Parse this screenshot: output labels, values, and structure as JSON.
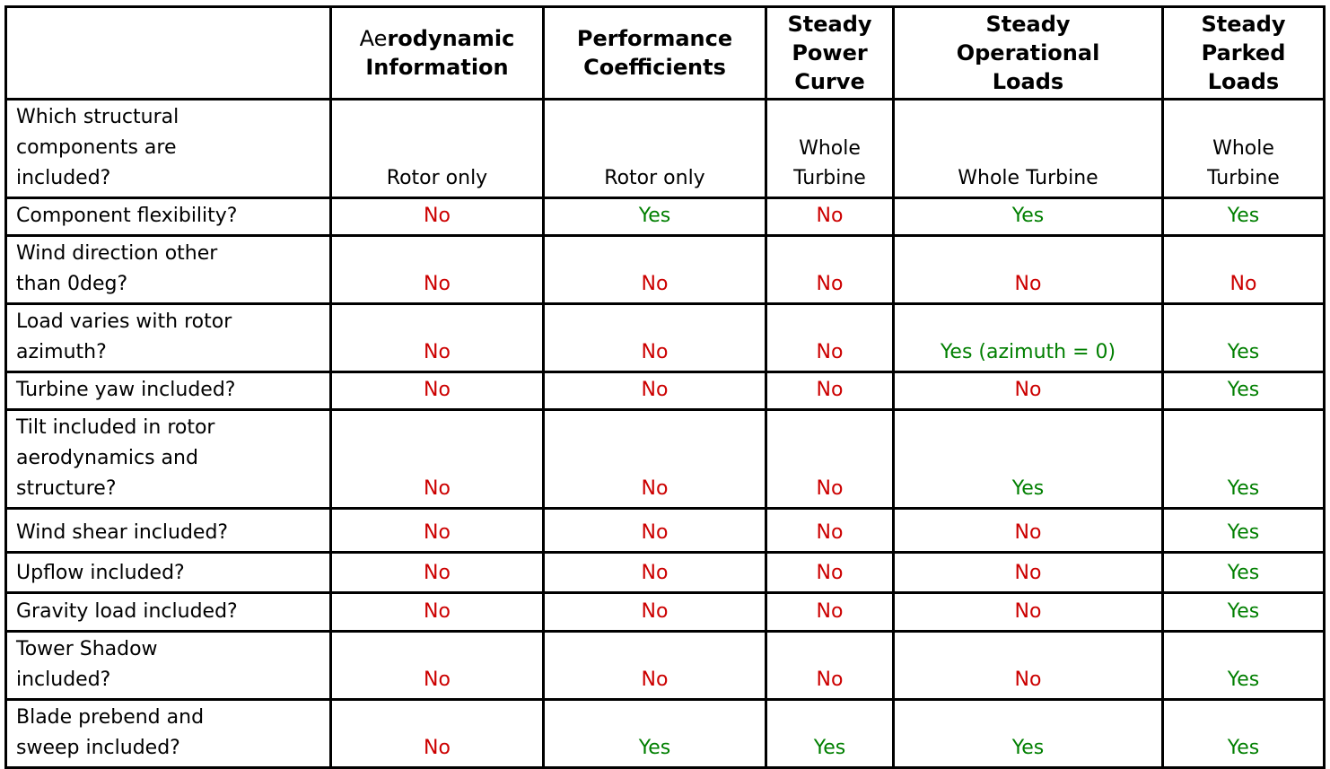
{
  "colors": {
    "yes_text": "#007f00",
    "no_text": "#cc0000",
    "neutral_text": "#000000",
    "border": "#000000",
    "background": "#ffffff"
  },
  "table": {
    "corner_label": "",
    "columns": [
      {
        "id": "aerodynamic-information",
        "label": "Aerodynamic Information",
        "lines": [
          {
            "parts": [
              {
                "t": "Ae",
                "b": false
              },
              {
                "t": "rodynamic",
                "b": true
              }
            ]
          },
          {
            "parts": [
              {
                "t": "Information",
                "b": true
              }
            ]
          }
        ]
      },
      {
        "id": "performance-coefficients",
        "label": "Performance Coefficients",
        "lines": [
          {
            "parts": [
              {
                "t": "Performance",
                "b": true
              }
            ]
          },
          {
            "parts": [
              {
                "t": "Coefficients",
                "b": true
              }
            ]
          }
        ]
      },
      {
        "id": "steady-power-curve",
        "label": "Steady Power Curve",
        "lines": [
          {
            "parts": [
              {
                "t": "Steady",
                "b": true
              }
            ]
          },
          {
            "parts": [
              {
                "t": "Power",
                "b": true
              }
            ]
          },
          {
            "parts": [
              {
                "t": "Curve",
                "b": true
              }
            ]
          }
        ]
      },
      {
        "id": "steady-operational-loads",
        "label": "Steady Operational Loads",
        "lines": [
          {
            "parts": [
              {
                "t": "Steady",
                "b": true
              }
            ]
          },
          {
            "parts": [
              {
                "t": "Operational",
                "b": true
              }
            ]
          },
          {
            "parts": [
              {
                "t": "Loads",
                "b": true
              }
            ]
          }
        ]
      },
      {
        "id": "steady-parked-loads",
        "label": "Steady Parked Loads",
        "lines": [
          {
            "parts": [
              {
                "t": "Steady",
                "b": true
              }
            ]
          },
          {
            "parts": [
              {
                "t": "Parked",
                "b": true
              }
            ]
          },
          {
            "parts": [
              {
                "t": "Loads",
                "b": true
              }
            ]
          }
        ]
      }
    ],
    "rows": [
      {
        "label": "Which structural components are included?",
        "label_lines": [
          "Which structural",
          "components are",
          "included?"
        ],
        "cells": [
          {
            "lines": [
              "Rotor only"
            ],
            "status": "neutral"
          },
          {
            "lines": [
              "Rotor only"
            ],
            "status": "neutral"
          },
          {
            "lines": [
              "Whole",
              "Turbine"
            ],
            "status": "neutral"
          },
          {
            "lines": [
              "Whole Turbine"
            ],
            "status": "neutral"
          },
          {
            "lines": [
              "Whole",
              "Turbine"
            ],
            "status": "neutral"
          }
        ]
      },
      {
        "label": "Component flexibility?",
        "label_lines": [
          "Component flexibility?"
        ],
        "cells": [
          {
            "text": "No",
            "status": "no"
          },
          {
            "text": "Yes",
            "status": "yes"
          },
          {
            "text": "No",
            "status": "no"
          },
          {
            "text": "Yes",
            "status": "yes"
          },
          {
            "text": "Yes",
            "status": "yes"
          }
        ]
      },
      {
        "label": "Wind direction other than 0deg?",
        "label_lines": [
          "Wind direction other",
          "than 0deg?"
        ],
        "cells": [
          {
            "text": "No",
            "status": "no"
          },
          {
            "text": "No",
            "status": "no"
          },
          {
            "text": "No",
            "status": "no"
          },
          {
            "text": "No",
            "status": "no"
          },
          {
            "text": "No",
            "status": "no"
          }
        ]
      },
      {
        "label": "Load varies with rotor azimuth?",
        "label_lines": [
          "Load varies with rotor",
          "azimuth?"
        ],
        "cells": [
          {
            "text": "No",
            "status": "no"
          },
          {
            "text": "No",
            "status": "no"
          },
          {
            "text": "No",
            "status": "no"
          },
          {
            "text": "Yes (azimuth = 0)",
            "status": "yes"
          },
          {
            "text": "Yes",
            "status": "yes"
          }
        ]
      },
      {
        "label": "Turbine yaw included?",
        "label_lines": [
          "Turbine yaw included?"
        ],
        "cells": [
          {
            "text": "No",
            "status": "no"
          },
          {
            "text": "No",
            "status": "no"
          },
          {
            "text": "No",
            "status": "no"
          },
          {
            "text": "No",
            "status": "no"
          },
          {
            "text": "Yes",
            "status": "yes"
          }
        ]
      },
      {
        "label": "Tilt included in rotor aerodynamics and structure?",
        "label_lines": [
          "Tilt included in rotor",
          "aerodynamics and",
          "structure?"
        ],
        "cells": [
          {
            "text": "No",
            "status": "no"
          },
          {
            "text": "No",
            "status": "no"
          },
          {
            "text": "No",
            "status": "no"
          },
          {
            "text": "Yes",
            "status": "yes"
          },
          {
            "text": "Yes",
            "status": "yes"
          }
        ]
      },
      {
        "label": "Wind shear included?",
        "label_lines": [
          "Wind shear included?"
        ],
        "cells": [
          {
            "text": "No",
            "status": "no"
          },
          {
            "text": "No",
            "status": "no"
          },
          {
            "text": "No",
            "status": "no"
          },
          {
            "text": "No",
            "status": "no"
          },
          {
            "text": "Yes",
            "status": "yes"
          }
        ]
      },
      {
        "label": "Upflow included?",
        "label_lines": [
          "Upflow included?"
        ],
        "cells": [
          {
            "text": "No",
            "status": "no"
          },
          {
            "text": "No",
            "status": "no"
          },
          {
            "text": "No",
            "status": "no"
          },
          {
            "text": "No",
            "status": "no"
          },
          {
            "text": "Yes",
            "status": "yes"
          }
        ]
      },
      {
        "label": "Gravity load included?",
        "label_lines": [
          "Gravity load included?"
        ],
        "cells": [
          {
            "text": "No",
            "status": "no"
          },
          {
            "text": "No",
            "status": "no"
          },
          {
            "text": "No",
            "status": "no"
          },
          {
            "text": "No",
            "status": "no"
          },
          {
            "text": "Yes",
            "status": "yes"
          }
        ]
      },
      {
        "label": "Tower Shadow included?",
        "label_lines": [
          "Tower Shadow",
          "included?"
        ],
        "cells": [
          {
            "text": "No",
            "status": "no"
          },
          {
            "text": "No",
            "status": "no"
          },
          {
            "text": "No",
            "status": "no"
          },
          {
            "text": "No",
            "status": "no"
          },
          {
            "text": "Yes",
            "status": "yes"
          }
        ]
      },
      {
        "label": "Blade prebend and sweep included?",
        "label_lines": [
          "Blade prebend and",
          "sweep included?"
        ],
        "cells": [
          {
            "text": "No",
            "status": "no"
          },
          {
            "text": "Yes",
            "status": "yes"
          },
          {
            "text": "Yes",
            "status": "yes"
          },
          {
            "text": "Yes",
            "status": "yes"
          },
          {
            "text": "Yes",
            "status": "yes"
          }
        ]
      }
    ]
  }
}
